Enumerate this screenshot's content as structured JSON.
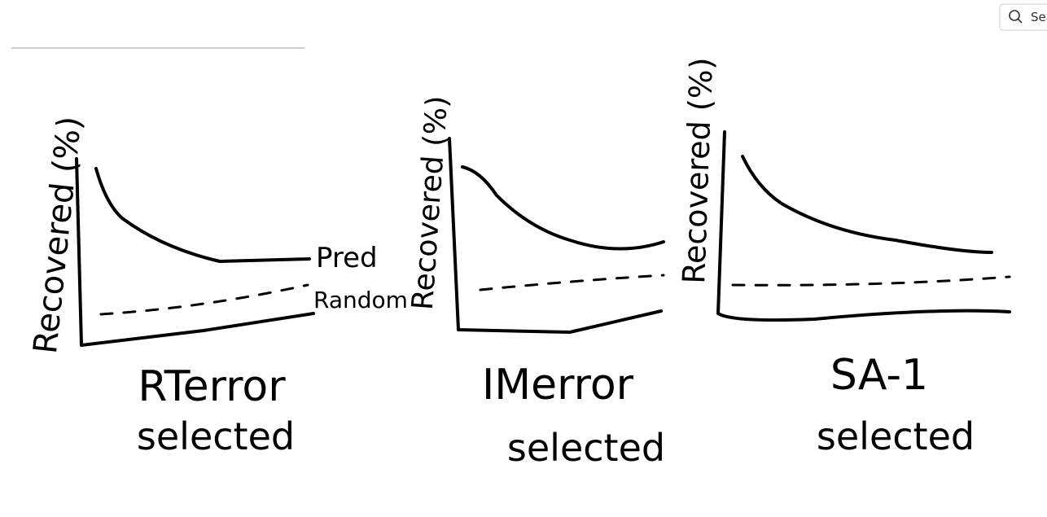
{
  "search": {
    "placeholder": "Sea"
  },
  "panels": [
    {
      "y_label": "Recovered (%)",
      "legend": [
        "Pred",
        "Random"
      ],
      "title": "RTerror",
      "subtitle": "selected"
    },
    {
      "y_label": "Recovered (%)",
      "title": "IMerror",
      "subtitle": "selected"
    },
    {
      "y_label": "Recovered (%)",
      "title": "SA-1",
      "subtitle": "selected"
    }
  ]
}
